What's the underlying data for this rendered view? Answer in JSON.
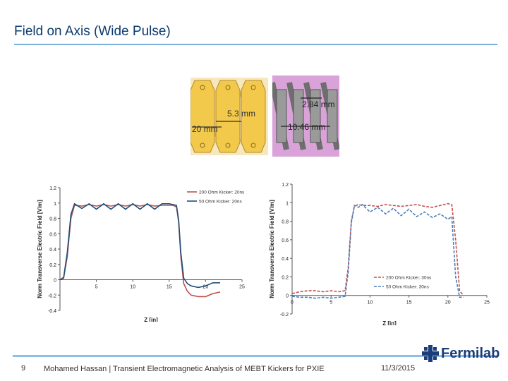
{
  "slide": {
    "title": "Field on Axis (Wide Pulse)",
    "page_number": "9",
    "footer_text": "Mohamed Hassan | Transient Electromagnetic Analysis of MEBT Kickers for PXIE",
    "date": "11/3/2015",
    "logo_text": "Fermilab",
    "colors": {
      "title": "#0b3a6b",
      "rule": "#7ab0d9",
      "series_red": "#c0504d",
      "series_blue": "#1f4e79"
    }
  },
  "photos": {
    "left": {
      "dim1": "5.3 mm",
      "dim2": "20 mm"
    },
    "right": {
      "dim1": "2.84 mm",
      "dim2": "10.46 mm"
    }
  },
  "chart_data": [
    {
      "type": "line",
      "xlabel": "Z [in]",
      "ylabel": "Norm Transverse Electric Field [V/m]",
      "xlim": [
        0,
        25
      ],
      "ylim": [
        -0.4,
        1.2
      ],
      "x_ticks": [
        "5",
        "10",
        "15",
        "20",
        "25"
      ],
      "y_ticks": [
        "-0.4",
        "-0.2",
        "0",
        "0.2",
        "0.4",
        "0.6",
        "0.8",
        "1",
        "1.2"
      ],
      "series": [
        {
          "name": "200 Ohm Kicker: 20ns",
          "x": [
            0,
            0.5,
            1,
            1.5,
            2,
            3,
            4,
            5,
            6,
            7,
            8,
            9,
            10,
            11,
            12,
            13,
            14,
            15,
            15.5,
            16,
            16.3,
            16.6,
            17,
            17.5,
            18,
            19,
            20,
            21,
            22
          ],
          "y": [
            0,
            0.02,
            0.3,
            0.8,
            0.97,
            0.96,
            0.98,
            0.96,
            0.98,
            0.96,
            0.98,
            0.96,
            0.98,
            0.96,
            0.98,
            0.96,
            0.97,
            0.97,
            0.97,
            0.95,
            0.75,
            0.3,
            -0.05,
            -0.15,
            -0.2,
            -0.22,
            -0.22,
            -0.18,
            -0.16
          ]
        },
        {
          "name": "50 Ohm Kicker: 20ns",
          "x": [
            0,
            0.5,
            1,
            1.5,
            2,
            3,
            4,
            5,
            6,
            7,
            8,
            9,
            10,
            11,
            12,
            13,
            14,
            15,
            15.5,
            16,
            16.3,
            16.6,
            17,
            17.5,
            18,
            19,
            20,
            21,
            22
          ],
          "y": [
            0,
            0.03,
            0.35,
            0.85,
            0.99,
            0.93,
            0.99,
            0.92,
            0.99,
            0.92,
            0.99,
            0.92,
            0.99,
            0.92,
            0.99,
            0.92,
            0.99,
            0.99,
            0.98,
            0.97,
            0.78,
            0.35,
            0.02,
            -0.05,
            -0.08,
            -0.1,
            -0.08,
            -0.04,
            -0.04
          ]
        }
      ]
    },
    {
      "type": "line",
      "xlabel": "Z [in]",
      "ylabel": "Norm Transverse Electric Field [V/m]",
      "xlim": [
        0,
        25
      ],
      "ylim": [
        -0.2,
        1.2
      ],
      "x_ticks": [
        "0",
        "5",
        "10",
        "15",
        "20",
        "25"
      ],
      "y_ticks": [
        "-0.2",
        "0",
        "0.2",
        "0.4",
        "0.6",
        "0.8",
        "1",
        "1.2"
      ],
      "series": [
        {
          "name": "200 Ohm Kicker: 30ns",
          "x": [
            0,
            1,
            2,
            3,
            4,
            5,
            6,
            6.8,
            7.2,
            7.6,
            8,
            8.5,
            9,
            10,
            11,
            12,
            13,
            14,
            15,
            16,
            17,
            18,
            19,
            20,
            20.5,
            21,
            21.5,
            22
          ],
          "y": [
            0.02,
            0.04,
            0.05,
            0.05,
            0.04,
            0.05,
            0.04,
            0.05,
            0.3,
            0.8,
            0.96,
            0.98,
            0.97,
            0.97,
            0.96,
            0.98,
            0.97,
            0.96,
            0.97,
            0.98,
            0.96,
            0.95,
            0.97,
            0.99,
            0.98,
            0.6,
            0.05,
            0.0
          ]
        },
        {
          "name": "50 Ohm Kicker: 30ns",
          "x": [
            0,
            1,
            2,
            3,
            4,
            5,
            6,
            6.8,
            7.2,
            7.6,
            8,
            8.5,
            9,
            10,
            11,
            12,
            13,
            14,
            15,
            16,
            17,
            18,
            19,
            20,
            20.5,
            21,
            21.5,
            22
          ],
          "y": [
            -0.01,
            -0.02,
            -0.02,
            -0.03,
            -0.02,
            -0.03,
            -0.02,
            -0.01,
            0.25,
            0.78,
            0.97,
            0.95,
            0.98,
            0.9,
            0.95,
            0.88,
            0.94,
            0.86,
            0.93,
            0.85,
            0.9,
            0.84,
            0.88,
            0.82,
            0.85,
            0.2,
            -0.02,
            -0.02
          ]
        }
      ]
    }
  ]
}
